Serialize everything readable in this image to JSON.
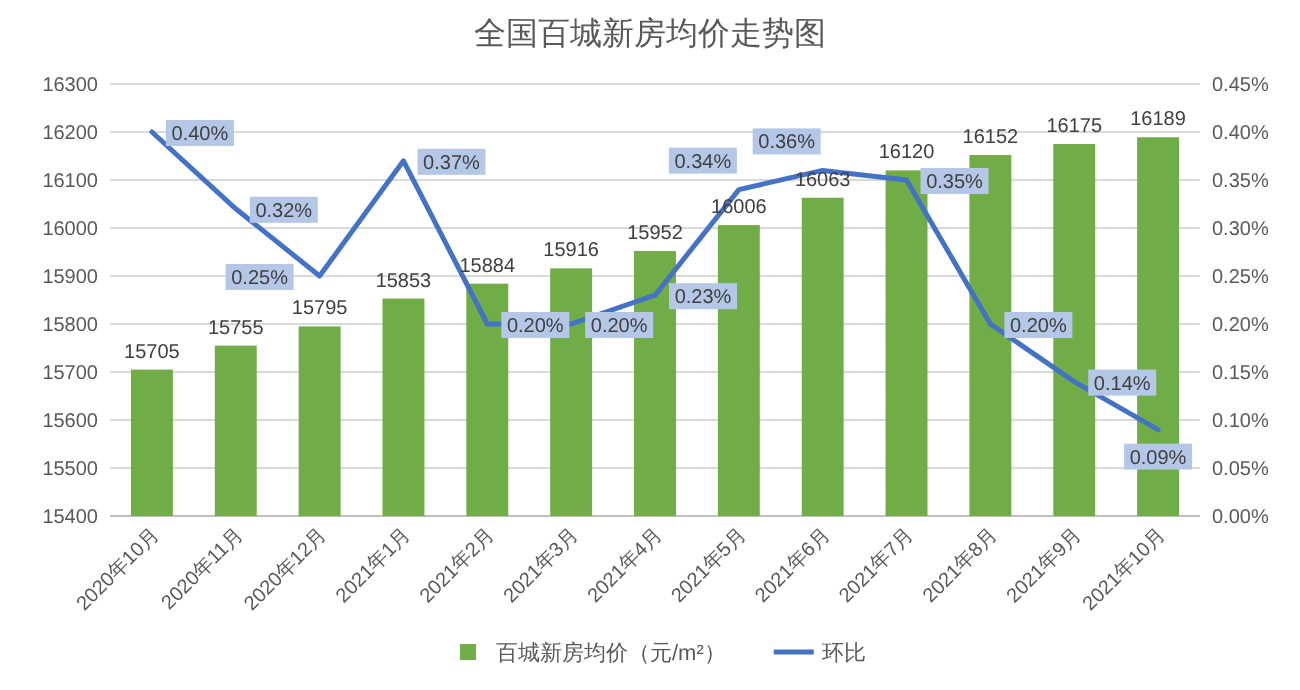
{
  "chart_data": {
    "type": "bar",
    "title": "全国百城新房均价走势图",
    "categories": [
      "2020年10月",
      "2020年11月",
      "2020年12月",
      "2021年1月",
      "2021年2月",
      "2021年3月",
      "2021年4月",
      "2021年5月",
      "2021年6月",
      "2021年7月",
      "2021年8月",
      "2021年9月",
      "2021年10月"
    ],
    "series": [
      {
        "name": "百城新房均价（元/m²）",
        "color": "#70ad47",
        "values": [
          15705,
          15755,
          15795,
          15853,
          15884,
          15916,
          15952,
          16006,
          16063,
          16120,
          16152,
          16175,
          16189
        ],
        "data_labels": true
      },
      {
        "name": "环比",
        "type": "line",
        "axis": "y2",
        "color": "#4472c4",
        "values": [
          0.4,
          0.32,
          0.25,
          0.37,
          0.2,
          0.2,
          0.23,
          0.34,
          0.36,
          0.35,
          0.2,
          0.14,
          0.09
        ],
        "value_labels": [
          "0.40%",
          "0.32%",
          "0.25%",
          "0.37%",
          "0.20%",
          "0.20%",
          "0.23%",
          "0.34%",
          "0.36%",
          "0.35%",
          "0.20%",
          "0.14%",
          "0.09%"
        ]
      }
    ],
    "ylim": [
      15400,
      16300
    ],
    "yticks": [
      15400,
      15500,
      15600,
      15700,
      15800,
      15900,
      16000,
      16100,
      16200,
      16300
    ],
    "y2lim": [
      0,
      0.45
    ],
    "y2ticks": [
      {
        "value": 0,
        "label": "0.00%"
      },
      {
        "value": 0.05,
        "label": "0.05%"
      },
      {
        "value": 0.1,
        "label": "0.10%"
      },
      {
        "value": 0.15,
        "label": "0.15%"
      },
      {
        "value": 0.2,
        "label": "0.20%"
      },
      {
        "value": 0.25,
        "label": "0.25%"
      },
      {
        "value": 0.3,
        "label": "0.30%"
      },
      {
        "value": 0.35,
        "label": "0.35%"
      },
      {
        "value": 0.4,
        "label": "0.40%"
      },
      {
        "value": 0.45,
        "label": "0.45%"
      }
    ],
    "grid": "y",
    "legend": "bottom",
    "marker": "none",
    "line_style": "solid"
  }
}
